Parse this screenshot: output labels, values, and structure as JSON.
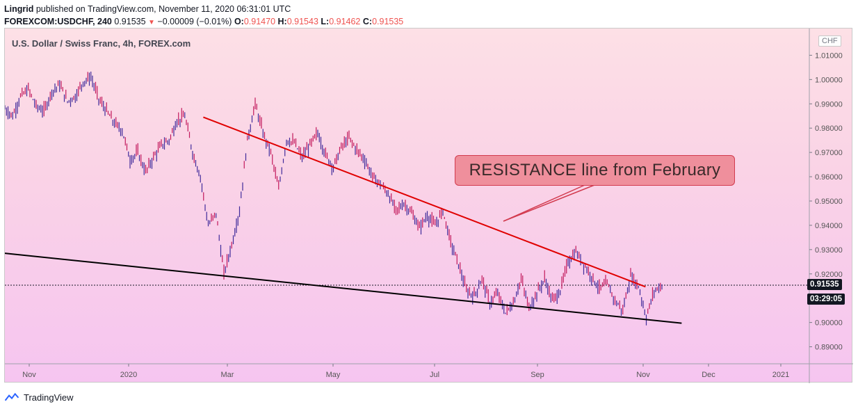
{
  "header": {
    "publisher": "Lingrid",
    "published_text": "published on TradingView.com, November 11, 2020 06:31:01 UTC",
    "symbol": "FOREXCOM:USDCHF, 240",
    "last": "0.91535",
    "change": "−0.00009 (−0.01%)",
    "o_label": "O:",
    "o_value": "0.91470",
    "h_label": "H:",
    "h_value": "0.91543",
    "l_label": "L:",
    "l_value": "0.91462",
    "c_label": "C:",
    "c_value": "0.91535"
  },
  "symbol_title": "U.S. Dollar / Swiss Franc, 4h, FOREX.com",
  "currency": "CHF",
  "last_price_badge": "0.91535",
  "countdown_badge": "03:29:05",
  "annotation_text": "RESISTANCE line from February",
  "footer": {
    "brand": "TradingView"
  },
  "colors": {
    "candle": "#7b2a8c",
    "resistance": "#e00000",
    "support": "#000000",
    "annotation_fill": "#ef8f9c",
    "annotation_border": "#d23a4e"
  },
  "chart_data": {
    "type": "line",
    "title": "U.S. Dollar / Swiss Franc, 4h, FOREX.com",
    "xlabel": "",
    "ylabel": "",
    "ylim": [
      0.883,
      1.021
    ],
    "grid": false,
    "x_ticks": [
      "Nov",
      "2020",
      "Mar",
      "May",
      "Jul",
      "Sep",
      "Nov",
      "Dec",
      "2021"
    ],
    "y_ticks": [
      "1.01000",
      "1.00000",
      "0.99000",
      "0.98000",
      "0.97000",
      "0.96000",
      "0.95000",
      "0.94000",
      "0.93000",
      "0.92000",
      "0.91000",
      "0.90000",
      "0.89000"
    ],
    "series": [
      {
        "values": [
          0.988,
          0.985,
          0.993,
          0.996,
          0.989,
          0.987,
          0.995,
          0.998,
          0.991,
          0.993,
          0.999,
          1.001,
          0.992,
          0.987,
          0.982,
          0.979,
          0.967,
          0.97,
          0.962,
          0.968,
          0.973,
          0.975,
          0.983,
          0.985,
          0.97,
          0.96,
          0.94,
          0.945,
          0.92,
          0.932,
          0.946,
          0.975,
          0.99,
          0.978,
          0.97,
          0.955,
          0.975,
          0.974,
          0.968,
          0.973,
          0.978,
          0.969,
          0.964,
          0.972,
          0.976,
          0.971,
          0.967,
          0.96,
          0.957,
          0.953,
          0.946,
          0.949,
          0.945,
          0.939,
          0.944,
          0.94,
          0.946,
          0.933,
          0.924,
          0.913,
          0.911,
          0.918,
          0.908,
          0.912,
          0.904,
          0.908,
          0.918,
          0.906,
          0.912,
          0.918,
          0.909,
          0.913,
          0.925,
          0.929,
          0.924,
          0.919,
          0.914,
          0.916,
          0.909,
          0.905,
          0.919,
          0.915,
          0.902,
          0.913,
          0.9153
        ]
      }
    ],
    "trendlines": [
      {
        "name": "RESISTANCE line from February",
        "points": [
          [
            0.302,
            0.9845
          ],
          [
            0.975,
            0.9147
          ]
        ]
      },
      {
        "name": "support",
        "points": [
          [
            0.0,
            0.9285
          ],
          [
            1.03,
            0.8997
          ]
        ]
      }
    ],
    "last_value": 0.91535
  }
}
